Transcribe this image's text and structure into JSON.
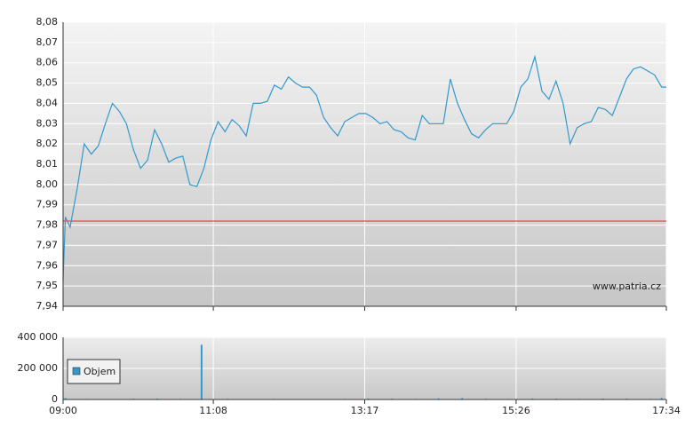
{
  "chart_data": [
    {
      "type": "line",
      "x": [
        "09:00",
        "09:02",
        "09:06",
        "09:12",
        "09:18",
        "09:24",
        "09:30",
        "09:36",
        "09:42",
        "09:48",
        "09:54",
        "10:00",
        "10:06",
        "10:12",
        "10:18",
        "10:24",
        "10:30",
        "10:36",
        "10:42",
        "10:48",
        "10:54",
        "11:00",
        "11:06",
        "11:12",
        "11:18",
        "11:24",
        "11:30",
        "11:36",
        "11:42",
        "11:48",
        "11:54",
        "12:00",
        "12:06",
        "12:12",
        "12:18",
        "12:24",
        "12:30",
        "12:36",
        "12:42",
        "12:48",
        "12:54",
        "13:00",
        "13:06",
        "13:12",
        "13:18",
        "13:24",
        "13:30",
        "13:36",
        "13:42",
        "13:48",
        "13:54",
        "14:00",
        "14:06",
        "14:12",
        "14:18",
        "14:24",
        "14:30",
        "14:36",
        "14:42",
        "14:48",
        "14:54",
        "15:00",
        "15:06",
        "15:12",
        "15:18",
        "15:24",
        "15:30",
        "15:36",
        "15:42",
        "15:48",
        "15:54",
        "16:00",
        "16:06",
        "16:12",
        "16:18",
        "16:24",
        "16:30",
        "16:36",
        "16:42",
        "16:48",
        "16:54",
        "17:00",
        "17:06",
        "17:12",
        "17:18",
        "17:24",
        "17:30",
        "17:34"
      ],
      "values": [
        7.953,
        7.984,
        7.979,
        7.998,
        8.02,
        8.015,
        8.019,
        8.03,
        8.04,
        8.036,
        8.03,
        8.017,
        8.008,
        8.012,
        8.027,
        8.02,
        8.011,
        8.013,
        8.014,
        8.0,
        7.999,
        8.008,
        8.022,
        8.031,
        8.026,
        8.032,
        8.029,
        8.024,
        8.04,
        8.04,
        8.041,
        8.049,
        8.047,
        8.053,
        8.05,
        8.048,
        8.048,
        8.044,
        8.033,
        8.028,
        8.024,
        8.031,
        8.033,
        8.035,
        8.035,
        8.033,
        8.03,
        8.031,
        8.027,
        8.026,
        8.023,
        8.022,
        8.034,
        8.03,
        8.03,
        8.03,
        8.052,
        8.04,
        8.032,
        8.025,
        8.023,
        8.027,
        8.03,
        8.03,
        8.03,
        8.036,
        8.048,
        8.052,
        8.063,
        8.046,
        8.042,
        8.051,
        8.04,
        8.02,
        8.028,
        8.03,
        8.031,
        8.038,
        8.037,
        8.034,
        8.043,
        8.052,
        8.057,
        8.058,
        8.056,
        8.054,
        8.048,
        8.048
      ],
      "color": "#3399cc",
      "xlim": [
        "09:00",
        "17:34"
      ],
      "ylim": [
        7.94,
        8.08
      ],
      "yticks": [
        {
          "value": 7.94,
          "label": "7,94"
        },
        {
          "value": 7.95,
          "label": "7,95"
        },
        {
          "value": 7.96,
          "label": "7,96"
        },
        {
          "value": 7.97,
          "label": "7,97"
        },
        {
          "value": 7.98,
          "label": "7,98"
        },
        {
          "value": 7.99,
          "label": "7,99"
        },
        {
          "value": 8.0,
          "label": "8,00"
        },
        {
          "value": 8.01,
          "label": "8,01"
        },
        {
          "value": 8.02,
          "label": "8,02"
        },
        {
          "value": 8.03,
          "label": "8,03"
        },
        {
          "value": 8.04,
          "label": "8,04"
        },
        {
          "value": 8.05,
          "label": "8,05"
        },
        {
          "value": 8.06,
          "label": "8,06"
        },
        {
          "value": 8.07,
          "label": "8,07"
        },
        {
          "value": 8.08,
          "label": "8,08"
        }
      ],
      "reference_line": 7.982,
      "reference_color": "#e03030",
      "grid": true,
      "watermark": "www.patria.cz"
    },
    {
      "type": "bar",
      "x": [
        "09:02",
        "09:20",
        "09:40",
        "10:00",
        "10:20",
        "10:40",
        "10:58",
        "11:20",
        "11:40",
        "12:00",
        "12:20",
        "12:40",
        "13:00",
        "13:20",
        "13:40",
        "14:00",
        "14:20",
        "14:40",
        "15:00",
        "15:20",
        "15:40",
        "16:00",
        "16:20",
        "16:40",
        "17:00",
        "17:20",
        "17:30"
      ],
      "series": [
        {
          "name": "Objem",
          "color": "#3399cc",
          "values": [
            9000,
            4000,
            3000,
            5000,
            6000,
            4000,
            352000,
            5000,
            3000,
            4000,
            2000,
            3000,
            4000,
            6000,
            5000,
            4000,
            7000,
            9000,
            5000,
            4000,
            6000,
            5000,
            4000,
            6000,
            5000,
            4000,
            10000
          ]
        }
      ],
      "xlim": [
        "09:00",
        "17:34"
      ],
      "ylim": [
        0,
        400000
      ],
      "yticks": [
        0,
        {
          "value": 200000,
          "label": "200 000"
        },
        {
          "value": 400000,
          "label": "400 000"
        }
      ],
      "xticks": [
        "09:00",
        "11:08",
        "13:17",
        "15:26",
        "17:34"
      ],
      "grid": true,
      "legend": "top-left"
    }
  ]
}
